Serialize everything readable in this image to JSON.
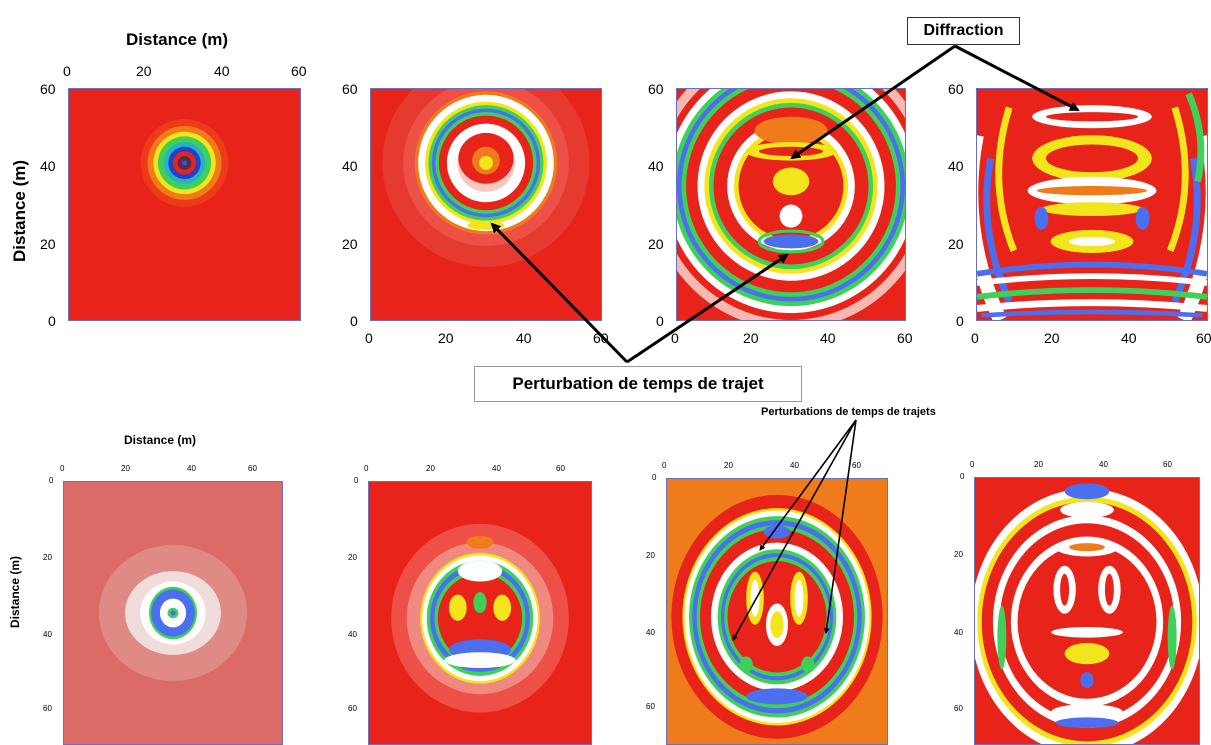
{
  "labels": {
    "distance_x_top": "Distance (m)",
    "distance_y_top": "Distance (m)",
    "distance_x_bottom": "Distance (m)",
    "distance_y_bottom": "Distance (m)",
    "diffraction": "Diffraction",
    "perturbation_single": "Perturbation de temps de trajet",
    "perturbation_plural": "Perturbations de temps de trajets"
  },
  "top_row": {
    "x_ticks": [
      "0",
      "20",
      "40",
      "60"
    ],
    "y_ticks": [
      "60",
      "40",
      "20",
      "0"
    ]
  },
  "bottom_row": {
    "x_ticks": [
      "0",
      "20",
      "40",
      "60"
    ],
    "y_ticks": [
      "0",
      "20",
      "40",
      "60"
    ]
  },
  "colors": {
    "background_red": "#e8231a",
    "white": "#ffffff",
    "blue": "#4c6ff0",
    "green": "#3fd05a",
    "yellow": "#f2e51c",
    "orange": "#f07b1a",
    "frame": "#6a6fc0"
  }
}
